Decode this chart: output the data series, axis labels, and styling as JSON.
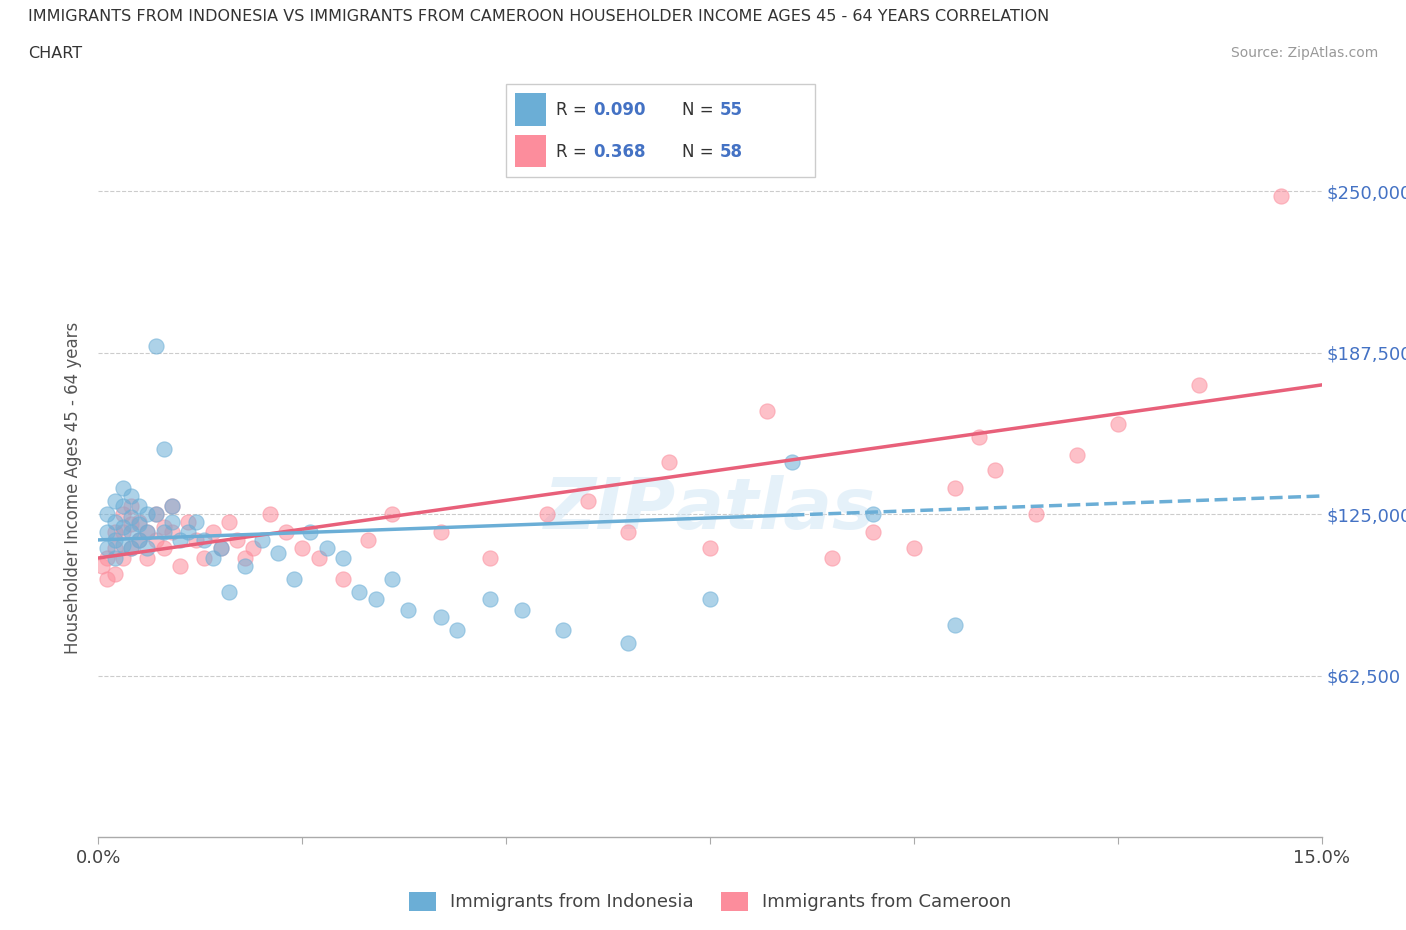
{
  "title_line1": "IMMIGRANTS FROM INDONESIA VS IMMIGRANTS FROM CAMEROON HOUSEHOLDER INCOME AGES 45 - 64 YEARS CORRELATION",
  "title_line2": "CHART",
  "source_text": "Source: ZipAtlas.com",
  "ylabel": "Householder Income Ages 45 - 64 years",
  "xlim": [
    0.0,
    0.15
  ],
  "ylim": [
    0,
    270000
  ],
  "yticks": [
    0,
    62500,
    125000,
    187500,
    250000
  ],
  "ytick_labels": [
    "",
    "$62,500",
    "$125,000",
    "$187,500",
    "$250,000"
  ],
  "xticks": [
    0.0,
    0.025,
    0.05,
    0.075,
    0.1,
    0.125,
    0.15
  ],
  "xtick_labels": [
    "0.0%",
    "",
    "",
    "",
    "",
    "",
    "15.0%"
  ],
  "R_indonesia": "0.090",
  "N_indonesia": "55",
  "R_cameroon": "0.368",
  "N_cameroon": "58",
  "color_indonesia": "#6baed6",
  "color_cameroon": "#fc8d9c",
  "legend_label_indonesia": "Immigrants from Indonesia",
  "legend_label_cameroon": "Immigrants from Cameroon",
  "watermark": "ZIPAtlas",
  "indo_trend_x0": 0.0,
  "indo_trend_y0": 115000,
  "indo_trend_x1": 0.15,
  "indo_trend_y1": 132000,
  "cam_trend_x0": 0.0,
  "cam_trend_y0": 108000,
  "cam_trend_x1": 0.15,
  "cam_trend_y1": 175000,
  "indo_x": [
    0.001,
    0.001,
    0.001,
    0.002,
    0.002,
    0.002,
    0.002,
    0.003,
    0.003,
    0.003,
    0.003,
    0.004,
    0.004,
    0.004,
    0.004,
    0.005,
    0.005,
    0.005,
    0.006,
    0.006,
    0.006,
    0.007,
    0.007,
    0.008,
    0.008,
    0.009,
    0.009,
    0.01,
    0.011,
    0.012,
    0.013,
    0.014,
    0.015,
    0.016,
    0.018,
    0.02,
    0.022,
    0.024,
    0.026,
    0.028,
    0.03,
    0.032,
    0.034,
    0.036,
    0.038,
    0.042,
    0.044,
    0.048,
    0.052,
    0.057,
    0.065,
    0.075,
    0.085,
    0.095,
    0.105
  ],
  "indo_y": [
    125000,
    118000,
    112000,
    130000,
    122000,
    115000,
    108000,
    135000,
    128000,
    120000,
    113000,
    132000,
    124000,
    118000,
    112000,
    128000,
    121000,
    115000,
    125000,
    118000,
    112000,
    190000,
    125000,
    150000,
    118000,
    128000,
    122000,
    115000,
    118000,
    122000,
    115000,
    108000,
    112000,
    95000,
    105000,
    115000,
    110000,
    100000,
    118000,
    112000,
    108000,
    95000,
    92000,
    100000,
    88000,
    85000,
    80000,
    92000,
    88000,
    80000,
    75000,
    92000,
    145000,
    125000,
    82000
  ],
  "cam_x": [
    0.0005,
    0.001,
    0.001,
    0.002,
    0.002,
    0.002,
    0.003,
    0.003,
    0.003,
    0.004,
    0.004,
    0.004,
    0.005,
    0.005,
    0.006,
    0.006,
    0.007,
    0.007,
    0.008,
    0.008,
    0.009,
    0.009,
    0.01,
    0.011,
    0.012,
    0.013,
    0.014,
    0.015,
    0.016,
    0.017,
    0.018,
    0.019,
    0.021,
    0.023,
    0.025,
    0.027,
    0.03,
    0.033,
    0.036,
    0.042,
    0.048,
    0.055,
    0.06,
    0.065,
    0.07,
    0.075,
    0.082,
    0.09,
    0.095,
    0.1,
    0.105,
    0.108,
    0.11,
    0.115,
    0.12,
    0.125,
    0.135,
    0.145
  ],
  "cam_y": [
    105000,
    108000,
    100000,
    118000,
    112000,
    102000,
    125000,
    118000,
    108000,
    128000,
    121000,
    112000,
    122000,
    115000,
    118000,
    108000,
    125000,
    115000,
    120000,
    112000,
    128000,
    118000,
    105000,
    122000,
    115000,
    108000,
    118000,
    112000,
    122000,
    115000,
    108000,
    112000,
    125000,
    118000,
    112000,
    108000,
    100000,
    115000,
    125000,
    118000,
    108000,
    125000,
    130000,
    118000,
    145000,
    112000,
    165000,
    108000,
    118000,
    112000,
    135000,
    155000,
    142000,
    125000,
    148000,
    160000,
    175000,
    248000
  ]
}
